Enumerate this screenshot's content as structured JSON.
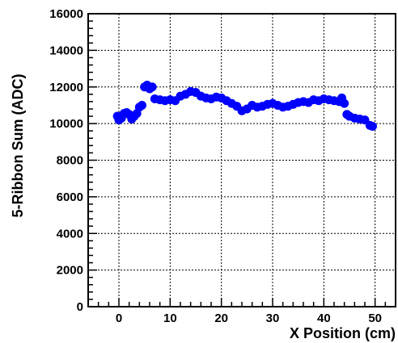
{
  "chart_data": {
    "type": "scatter",
    "title": "",
    "xlabel": "X Position (cm)",
    "ylabel": "5-Ribbon Sum (ADC)",
    "xlim": [
      -6,
      54
    ],
    "ylim": [
      0,
      16000
    ],
    "x_ticks": [
      0,
      10,
      20,
      30,
      40,
      50
    ],
    "y_ticks": [
      0,
      2000,
      4000,
      6000,
      8000,
      10000,
      12000,
      14000,
      16000
    ],
    "x_tick_labels": [
      "0",
      "10",
      "20",
      "30",
      "40",
      "50"
    ],
    "y_tick_labels": [
      "0",
      "2000",
      "4000",
      "6000",
      "8000",
      "10000",
      "12000",
      "14000",
      "16000"
    ],
    "grid": true,
    "marker_color": "#0000ff",
    "series": [
      {
        "points": [
          [
            -0.3,
            10400
          ],
          [
            0.0,
            10200
          ],
          [
            0.5,
            10300
          ],
          [
            1.0,
            10550
          ],
          [
            1.5,
            10600
          ],
          [
            2.0,
            10500
          ],
          [
            2.5,
            10250
          ],
          [
            3.0,
            10400
          ],
          [
            3.5,
            10550
          ],
          [
            4.0,
            10900
          ],
          [
            4.5,
            11000
          ],
          [
            5.0,
            12000
          ],
          [
            5.5,
            12100
          ],
          [
            6.0,
            11900
          ],
          [
            6.5,
            12000
          ],
          [
            7.0,
            11350
          ],
          [
            8.0,
            11300
          ],
          [
            9.0,
            11250
          ],
          [
            10.0,
            11300
          ],
          [
            11.0,
            11250
          ],
          [
            12.0,
            11500
          ],
          [
            13.0,
            11600
          ],
          [
            14.0,
            11750
          ],
          [
            15.0,
            11700
          ],
          [
            16.0,
            11500
          ],
          [
            17.0,
            11400
          ],
          [
            18.0,
            11350
          ],
          [
            19.0,
            11450
          ],
          [
            20.0,
            11400
          ],
          [
            21.0,
            11250
          ],
          [
            22.0,
            11100
          ],
          [
            23.0,
            10950
          ],
          [
            24.0,
            10700
          ],
          [
            25.0,
            10800
          ],
          [
            26.0,
            11000
          ],
          [
            27.0,
            10900
          ],
          [
            28.0,
            10950
          ],
          [
            29.0,
            11050
          ],
          [
            30.0,
            11100
          ],
          [
            31.0,
            11000
          ],
          [
            32.0,
            10900
          ],
          [
            33.0,
            10950
          ],
          [
            34.0,
            11050
          ],
          [
            35.0,
            11150
          ],
          [
            36.0,
            11200
          ],
          [
            37.0,
            11150
          ],
          [
            38.0,
            11300
          ],
          [
            39.0,
            11250
          ],
          [
            40.0,
            11350
          ],
          [
            41.0,
            11300
          ],
          [
            42.0,
            11250
          ],
          [
            43.0,
            11200
          ],
          [
            43.5,
            11400
          ],
          [
            44.0,
            11100
          ],
          [
            44.5,
            10500
          ],
          [
            45.0,
            10400
          ],
          [
            46.0,
            10300
          ],
          [
            47.0,
            10250
          ],
          [
            48.0,
            10200
          ],
          [
            49.0,
            9900
          ],
          [
            49.5,
            9850
          ]
        ]
      }
    ]
  }
}
